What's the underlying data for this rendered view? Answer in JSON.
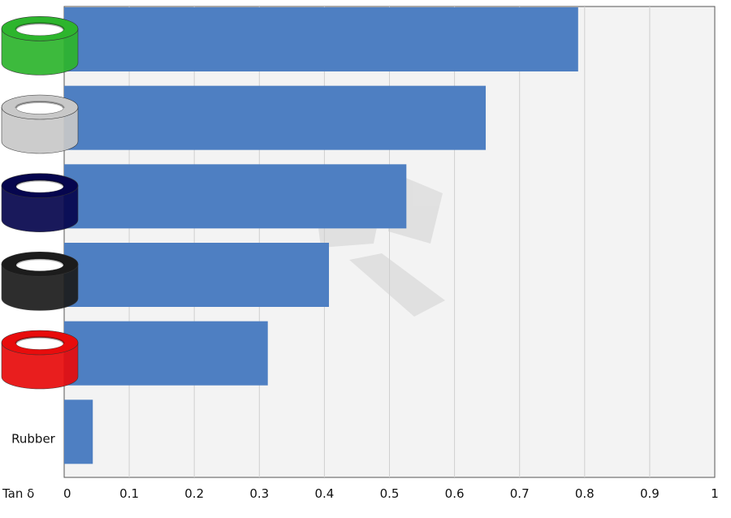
{
  "chart_data": {
    "type": "bar",
    "orientation": "horizontal",
    "title": "",
    "xlabel": "Tan δ",
    "ylabel": "",
    "xlim": [
      0,
      1
    ],
    "x_ticks": [
      "0",
      "0.1",
      "0.2",
      "0.3",
      "0.4",
      "0.5",
      "0.6",
      "0.7",
      "0.8",
      "0.9",
      "1"
    ],
    "grid": true,
    "legend": "none",
    "bar_color": "#4e7fc2",
    "categories": [
      {
        "label": "",
        "icon": "green-ring-icon",
        "color": "#2db52d",
        "value": 0.79
      },
      {
        "label": "",
        "icon": "grey-ring-icon",
        "color": "#c8c8c8",
        "value": 0.648
      },
      {
        "label": "",
        "icon": "navy-ring-icon",
        "color": "#06064e",
        "value": 0.526
      },
      {
        "label": "",
        "icon": "black-ring-icon",
        "color": "#1c1c1c",
        "value": 0.407
      },
      {
        "label": "",
        "icon": "red-ring-icon",
        "color": "#e80c0c",
        "value": 0.313
      },
      {
        "label": "Rubber",
        "icon": "",
        "color": "",
        "value": 0.044
      }
    ]
  }
}
